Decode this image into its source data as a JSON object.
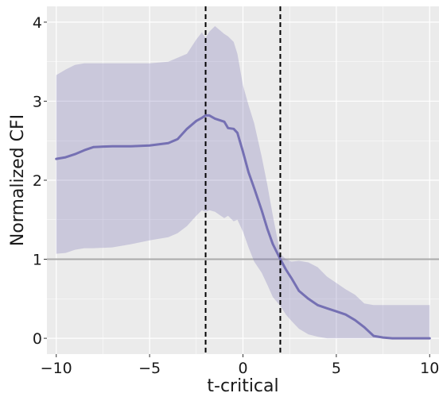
{
  "chart_data": {
    "type": "line",
    "title": "",
    "xlabel": "t-critical",
    "ylabel": "Normalized CFI",
    "xlim": [
      -10.5,
      10.5
    ],
    "ylim": [
      -0.2,
      4.2
    ],
    "x_ticks": [
      -10,
      -5,
      0,
      5,
      10
    ],
    "x_tick_labels": [
      "−10",
      "−5",
      "0",
      "5",
      "10"
    ],
    "y_ticks": [
      0,
      1,
      2,
      3,
      4
    ],
    "y_tick_labels": [
      "0",
      "1",
      "2",
      "3",
      "4"
    ],
    "grid": true,
    "legend": "none",
    "series": [
      {
        "x": [
          -10,
          -9.5,
          -9,
          -8.5,
          -8,
          -7,
          -6,
          -5,
          -4,
          -3.5,
          -3,
          -2.5,
          -2.2,
          -2,
          -1.8,
          -1.5,
          -1,
          -0.8,
          -0.5,
          -0.3,
          0,
          0.3,
          0.6,
          1,
          1.3,
          1.6,
          2,
          2.3,
          2.6,
          3,
          3.5,
          4,
          4.5,
          5,
          5.5,
          6,
          6.5,
          7,
          7.5,
          8,
          9,
          10
        ],
        "values": [
          2.27,
          2.29,
          2.33,
          2.38,
          2.42,
          2.43,
          2.43,
          2.44,
          2.47,
          2.52,
          2.65,
          2.75,
          2.79,
          2.82,
          2.82,
          2.78,
          2.74,
          2.66,
          2.65,
          2.6,
          2.36,
          2.1,
          1.9,
          1.62,
          1.39,
          1.19,
          1.0,
          0.87,
          0.76,
          0.6,
          0.5,
          0.42,
          0.38,
          0.34,
          0.3,
          0.23,
          0.14,
          0.03,
          0.01,
          0.0,
          0.0,
          0.0
        ],
        "lower": [
          1.07,
          1.08,
          1.12,
          1.14,
          1.14,
          1.15,
          1.19,
          1.24,
          1.28,
          1.33,
          1.42,
          1.55,
          1.62,
          1.6,
          1.62,
          1.6,
          1.52,
          1.55,
          1.48,
          1.5,
          1.35,
          1.15,
          0.97,
          0.83,
          0.68,
          0.52,
          0.41,
          0.3,
          0.22,
          0.12,
          0.05,
          0.02,
          0.0,
          0.0,
          0.0,
          0.0,
          0.0,
          0.0,
          0.0,
          0.0,
          0.0,
          0.0
        ],
        "upper": [
          3.33,
          3.4,
          3.46,
          3.48,
          3.48,
          3.48,
          3.48,
          3.48,
          3.5,
          3.55,
          3.6,
          3.78,
          3.87,
          3.8,
          3.88,
          3.95,
          3.85,
          3.82,
          3.75,
          3.6,
          3.2,
          2.95,
          2.72,
          2.3,
          1.95,
          1.55,
          1.07,
          1.0,
          0.97,
          0.98,
          0.96,
          0.9,
          0.78,
          0.7,
          0.62,
          0.55,
          0.44,
          0.42,
          0.42,
          0.42,
          0.42,
          0.42
        ]
      }
    ],
    "reference_lines": {
      "horizontal": [
        1
      ],
      "vertical": [
        -2,
        2
      ]
    },
    "colors": {
      "background": "#ebebeb",
      "grid": "#ffffff",
      "line": "#7570b3",
      "band": "#7570b3",
      "reference": "#aaaaaa",
      "vertical": "#000000"
    }
  }
}
